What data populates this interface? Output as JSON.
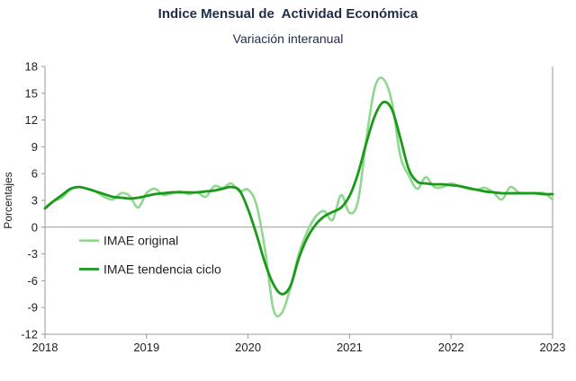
{
  "chart_data": {
    "type": "line",
    "title": "Indice Mensual de  Actividad Económica",
    "subtitle": "Variación interanual",
    "xlabel": "",
    "ylabel": "Porcentajes",
    "x_tick_labels": [
      "2018",
      "2019",
      "2020",
      "2021",
      "2022",
      "2023"
    ],
    "y_ticks": [
      18,
      15,
      12,
      9,
      6,
      3,
      0,
      -3,
      -6,
      -9,
      -12
    ],
    "ylim": [
      -12,
      18
    ],
    "xlim": [
      2018.0,
      2023.0
    ],
    "grid": false,
    "legend_position": "bottom-left",
    "series": [
      {
        "name": "IMAE original",
        "color": "#90d890",
        "x": [
          2018.0,
          2018.083,
          2018.167,
          2018.25,
          2018.333,
          2018.417,
          2018.5,
          2018.583,
          2018.667,
          2018.75,
          2018.833,
          2018.917,
          2019.0,
          2019.083,
          2019.167,
          2019.25,
          2019.333,
          2019.417,
          2019.5,
          2019.583,
          2019.667,
          2019.75,
          2019.833,
          2019.917,
          2020.0,
          2020.083,
          2020.167,
          2020.25,
          2020.333,
          2020.417,
          2020.5,
          2020.583,
          2020.667,
          2020.75,
          2020.833,
          2020.917,
          2021.0,
          2021.083,
          2021.167,
          2021.25,
          2021.333,
          2021.417,
          2021.5,
          2021.583,
          2021.667,
          2021.75,
          2021.833,
          2021.917,
          2022.0,
          2022.083,
          2022.167,
          2022.25,
          2022.333,
          2022.417,
          2022.5,
          2022.583,
          2022.667,
          2022.75,
          2022.833,
          2022.917,
          2023.0
        ],
        "values": [
          2.2,
          2.9,
          3.3,
          4.2,
          4.5,
          4.3,
          4.0,
          3.4,
          3.1,
          3.8,
          3.5,
          2.2,
          3.8,
          4.3,
          3.6,
          3.8,
          4.0,
          3.7,
          3.9,
          3.4,
          4.6,
          4.4,
          4.9,
          4.0,
          4.2,
          2.5,
          -2.5,
          -9.2,
          -9.6,
          -6.8,
          -3.0,
          -0.5,
          1.2,
          1.8,
          0.8,
          3.6,
          1.6,
          2.9,
          10.0,
          15.7,
          16.6,
          14.0,
          8.0,
          5.8,
          4.3,
          5.6,
          4.5,
          4.5,
          4.9,
          4.6,
          4.3,
          4.2,
          4.4,
          3.9,
          3.1,
          4.5,
          3.9,
          3.8,
          3.8,
          3.8,
          3.1
        ]
      },
      {
        "name": "IMAE tendencia ciclo",
        "color": "#1a9a1a",
        "x": [
          2018.0,
          2018.083,
          2018.167,
          2018.25,
          2018.333,
          2018.417,
          2018.5,
          2018.583,
          2018.667,
          2018.75,
          2018.833,
          2018.917,
          2019.0,
          2019.083,
          2019.167,
          2019.25,
          2019.333,
          2019.417,
          2019.5,
          2019.583,
          2019.667,
          2019.75,
          2019.833,
          2019.917,
          2020.0,
          2020.083,
          2020.167,
          2020.25,
          2020.333,
          2020.417,
          2020.5,
          2020.583,
          2020.667,
          2020.75,
          2020.833,
          2020.917,
          2021.0,
          2021.083,
          2021.167,
          2021.25,
          2021.333,
          2021.417,
          2021.5,
          2021.583,
          2021.667,
          2021.75,
          2021.833,
          2021.917,
          2022.0,
          2022.083,
          2022.167,
          2022.25,
          2022.333,
          2022.417,
          2022.5,
          2022.583,
          2022.667,
          2022.75,
          2022.833,
          2022.917,
          2023.0
        ],
        "values": [
          2.1,
          2.9,
          3.6,
          4.3,
          4.5,
          4.3,
          4.0,
          3.7,
          3.4,
          3.3,
          3.2,
          3.3,
          3.5,
          3.7,
          3.8,
          3.9,
          3.9,
          3.9,
          3.9,
          4.0,
          4.1,
          4.3,
          4.5,
          4.1,
          2.0,
          -0.8,
          -4.0,
          -6.4,
          -7.5,
          -6.6,
          -3.5,
          -1.2,
          0.3,
          1.2,
          1.7,
          2.2,
          3.5,
          6.0,
          9.5,
          12.5,
          14.0,
          13.2,
          10.0,
          6.5,
          5.1,
          4.9,
          4.8,
          4.8,
          4.7,
          4.6,
          4.4,
          4.2,
          4.0,
          3.9,
          3.8,
          3.8,
          3.8,
          3.8,
          3.8,
          3.7,
          3.7
        ]
      }
    ]
  }
}
